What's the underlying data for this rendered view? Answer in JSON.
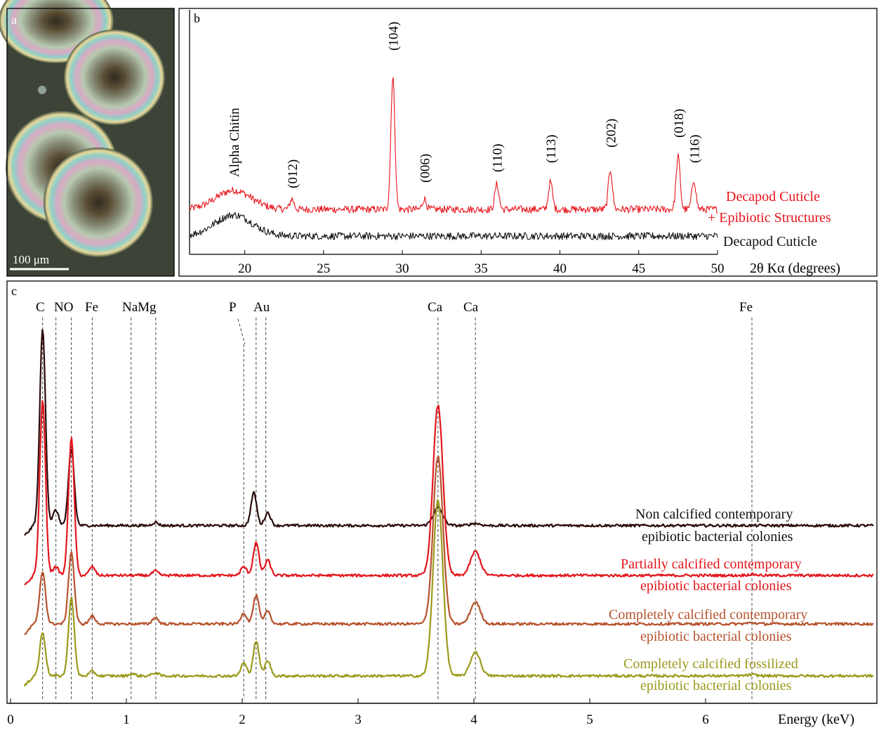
{
  "panel_a": {
    "letter": "a",
    "scale_bar_label": "100 μm",
    "image_description_colors": {
      "background": "#3b4236",
      "bar": "#ffffff"
    }
  },
  "chart_data": [
    {
      "panel": "b",
      "type": "line",
      "xlabel": "2θ Kα (degrees)",
      "xlim": [
        16.5,
        50
      ],
      "x_ticks": [
        20,
        25,
        30,
        35,
        40,
        45,
        50
      ],
      "peak_annotations": [
        {
          "label": "Alpha Chitin",
          "x": 19.3
        },
        {
          "label": "(012)",
          "x": 23.0
        },
        {
          "label": "(104)",
          "x": 29.4
        },
        {
          "label": "(006)",
          "x": 31.4
        },
        {
          "label": "(110)",
          "x": 36.0
        },
        {
          "label": "(113)",
          "x": 39.4
        },
        {
          "label": "(202)",
          "x": 43.2
        },
        {
          "label": "(018)",
          "x": 47.5
        },
        {
          "label": "(116)",
          "x": 48.5
        }
      ],
      "series": [
        {
          "name": "Decapod Cuticle + Epibiotic Structures",
          "label_lines": [
            "Decapod Cuticle",
            "+ Epibiotic Structures"
          ],
          "color": "#e8141b",
          "baseline": 0.55,
          "broad_peaks": [
            {
              "x": 19.3,
              "height": 0.9,
              "width": 1.6
            }
          ],
          "peaks": [
            {
              "x": 23.0,
              "height": 0.5
            },
            {
              "x": 29.4,
              "height": 6.3
            },
            {
              "x": 31.4,
              "height": 0.5
            },
            {
              "x": 36.0,
              "height": 1.2
            },
            {
              "x": 39.4,
              "height": 1.3
            },
            {
              "x": 43.2,
              "height": 1.9
            },
            {
              "x": 47.5,
              "height": 2.5
            },
            {
              "x": 48.5,
              "height": 1.4
            }
          ]
        },
        {
          "name": "Decapod Cuticle",
          "label_lines": [
            "Decapod Cuticle"
          ],
          "color": "#111111",
          "baseline": 0.0,
          "broad_peaks": [
            {
              "x": 19.3,
              "height": 1.0,
              "width": 1.7
            }
          ],
          "peaks": []
        }
      ]
    },
    {
      "panel": "c",
      "type": "line",
      "xlabel": "Energy (keV)",
      "xlim": [
        0,
        7.5
      ],
      "x_ticks": [
        0,
        1,
        2,
        3,
        4,
        5,
        6
      ],
      "element_lines": [
        {
          "label": "C",
          "x": 0.277
        },
        {
          "label": "N",
          "x": 0.392
        },
        {
          "label": "O",
          "x": 0.525
        },
        {
          "label": "Fe",
          "x": 0.705
        },
        {
          "label": "Na",
          "x": 1.041
        },
        {
          "label": "Mg",
          "x": 1.254
        },
        {
          "label": "P",
          "x": 2.013
        },
        {
          "label": "Au",
          "x": 2.12
        },
        {
          "label": "Au",
          "x": 2.204
        },
        {
          "label": "Ca",
          "x": 3.69
        },
        {
          "label": "Ca",
          "x": 4.013
        },
        {
          "label": "Fe",
          "x": 6.4
        }
      ],
      "element_label_text": {
        "c": "C",
        "no": "NO",
        "fe1": "Fe",
        "namg": "NaMg",
        "p": "P",
        "au": "Au",
        "ca1": "Ca",
        "ca2": "Ca",
        "fe2": "Fe"
      },
      "series": [
        {
          "name": "Non calcified contemporary epibiotic bacterial colonies",
          "label_lines": [
            "Non calcified contemporary",
            "epibiotic bacterial colonies"
          ],
          "color": "#2a0a0a",
          "baseline": 3.3,
          "peaks": [
            {
              "x": 0.277,
              "height": 9.0
            },
            {
              "x": 0.39,
              "height": 0.7
            },
            {
              "x": 0.525,
              "height": 3.5
            },
            {
              "x": 1.25,
              "height": 0.15
            },
            {
              "x": 2.1,
              "height": 1.5
            },
            {
              "x": 2.22,
              "height": 0.6
            },
            {
              "x": 3.69,
              "height": 0.8
            },
            {
              "x": 4.01,
              "height": 0.1
            }
          ]
        },
        {
          "name": "Partially calcified contemporary epibiotic bacterial colonies",
          "label_lines": [
            "Partially calcified contemporary",
            "epibiotic bacterial colonies"
          ],
          "color": "#e3161c",
          "baseline": 2.2,
          "peaks": [
            {
              "x": 0.277,
              "height": 8.0
            },
            {
              "x": 0.39,
              "height": 0.4
            },
            {
              "x": 0.525,
              "height": 6.3
            },
            {
              "x": 0.705,
              "height": 0.4
            },
            {
              "x": 1.25,
              "height": 0.2
            },
            {
              "x": 2.013,
              "height": 0.4
            },
            {
              "x": 2.12,
              "height": 1.5
            },
            {
              "x": 2.22,
              "height": 0.7
            },
            {
              "x": 3.69,
              "height": 7.8
            },
            {
              "x": 4.013,
              "height": 1.1
            },
            {
              "x": 6.4,
              "height": 0.05
            }
          ]
        },
        {
          "name": "Completely calcified contemporary epibiotic bacterial colonies",
          "label_lines": [
            "Completely calcified contemporary",
            "epibiotic bacterial colonies"
          ],
          "color": "#b5532e",
          "baseline": 1.1,
          "peaks": [
            {
              "x": 0.277,
              "height": 2.4
            },
            {
              "x": 0.525,
              "height": 3.3
            },
            {
              "x": 0.705,
              "height": 0.35
            },
            {
              "x": 1.25,
              "height": 0.3
            },
            {
              "x": 2.013,
              "height": 0.5
            },
            {
              "x": 2.12,
              "height": 1.3
            },
            {
              "x": 2.22,
              "height": 0.6
            },
            {
              "x": 3.69,
              "height": 7.7
            },
            {
              "x": 4.013,
              "height": 1.0
            },
            {
              "x": 6.4,
              "height": 0.05
            }
          ]
        },
        {
          "name": "Completely calcified fossilized epibiotic bacterial colonies",
          "label_lines": [
            "Completely calcified fossilized",
            "epibiotic bacterial colonies"
          ],
          "color": "#9a9a1c",
          "baseline": 0.0,
          "peaks": [
            {
              "x": 0.277,
              "height": 2.0
            },
            {
              "x": 0.525,
              "height": 3.6
            },
            {
              "x": 0.705,
              "height": 0.2
            },
            {
              "x": 1.05,
              "height": 0.1
            },
            {
              "x": 1.25,
              "height": 0.15
            },
            {
              "x": 2.013,
              "height": 0.6
            },
            {
              "x": 2.12,
              "height": 1.6
            },
            {
              "x": 2.22,
              "height": 0.7
            },
            {
              "x": 3.69,
              "height": 8.1
            },
            {
              "x": 4.013,
              "height": 1.1
            },
            {
              "x": 6.4,
              "height": 0.05
            }
          ]
        }
      ]
    }
  ]
}
